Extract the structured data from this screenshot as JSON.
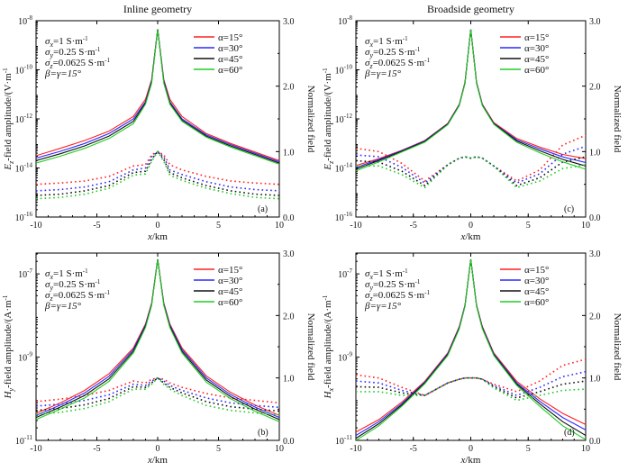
{
  "figure": {
    "col_titles": [
      "Inline geometry",
      "Broadside geometry"
    ],
    "right_axis_label": "Normalized field",
    "series_colors": [
      "#ff2020",
      "#2a2aff",
      "#111111",
      "#22cc22"
    ]
  },
  "chart_data": [
    {
      "type": "line",
      "id": "a",
      "panel_label": "(a)",
      "title": "Inline geometry",
      "xlabel": "x/km",
      "ylabel": "Ez-field amplitude/(V·m⁻¹)",
      "ylabel_parts": [
        "E",
        "z",
        "-field amplitude/(V·m",
        "-1",
        ")"
      ],
      "xlim": [
        -10,
        10
      ],
      "x_ticks": [
        "-10",
        "-5",
        "0",
        "5",
        "10"
      ],
      "ylim_log10": [
        -16,
        -8
      ],
      "y_ticks": [
        [
          "10",
          "-8"
        ],
        [
          "10",
          "-10"
        ],
        [
          "10",
          "-12"
        ],
        [
          "10",
          "-14"
        ],
        [
          "10",
          "-16"
        ]
      ],
      "y2label": "Normalized field",
      "y2lim": [
        0,
        3
      ],
      "y2_ticks": [
        "3.0",
        "2.0",
        "1.0",
        "0.0"
      ],
      "annotations": [
        [
          "σ",
          "x",
          "=1 S·m",
          "-1"
        ],
        [
          "σ",
          "y",
          "=0.25 S·m",
          "-1"
        ],
        [
          "σ",
          "z",
          "=0.0625 S·m",
          "-1"
        ],
        [
          "β=γ=15°",
          "",
          "",
          ""
        ]
      ],
      "legend": [
        "α=15°",
        "α=30°",
        "α=45°",
        "α=60°"
      ],
      "x": [
        -10,
        -8,
        -6,
        -4,
        -2,
        -1,
        -0.5,
        0,
        0.5,
        1,
        2,
        4,
        6,
        8,
        10
      ],
      "series": [
        {
          "name": "α=15°",
          "amp_log10": [
            -13.5,
            -13.2,
            -12.88,
            -12.5,
            -11.9,
            -11.2,
            -10.4,
            -8.35,
            -10.4,
            -11.2,
            -11.9,
            -12.6,
            -13.0,
            -13.35,
            -13.7
          ],
          "normalized": [
            0.5,
            0.52,
            0.55,
            0.62,
            0.78,
            0.8,
            0.95,
            1.0,
            0.95,
            0.8,
            0.72,
            0.62,
            0.55,
            0.52,
            0.5
          ]
        },
        {
          "name": "α=30°",
          "amp_log10": [
            -13.6,
            -13.32,
            -13.0,
            -12.6,
            -12.0,
            -11.3,
            -10.45,
            -8.35,
            -10.45,
            -11.3,
            -12.0,
            -12.65,
            -13.05,
            -13.4,
            -13.75
          ],
          "normalized": [
            0.4,
            0.42,
            0.46,
            0.54,
            0.72,
            0.75,
            0.92,
            1.0,
            0.92,
            0.72,
            0.65,
            0.54,
            0.46,
            0.42,
            0.4
          ]
        },
        {
          "name": "α=45°",
          "amp_log10": [
            -13.7,
            -13.42,
            -13.1,
            -12.7,
            -12.1,
            -11.35,
            -10.5,
            -8.35,
            -10.5,
            -11.35,
            -12.05,
            -12.7,
            -13.1,
            -13.45,
            -13.8
          ],
          "normalized": [
            0.33,
            0.35,
            0.4,
            0.48,
            0.68,
            0.7,
            0.88,
            1.0,
            0.88,
            0.68,
            0.6,
            0.48,
            0.4,
            0.35,
            0.33
          ]
        },
        {
          "name": "α=60°",
          "amp_log10": [
            -13.8,
            -13.52,
            -13.2,
            -12.8,
            -12.2,
            -11.4,
            -10.55,
            -8.35,
            -10.55,
            -11.4,
            -12.1,
            -12.75,
            -13.15,
            -13.5,
            -13.85
          ],
          "normalized": [
            0.28,
            0.3,
            0.35,
            0.44,
            0.64,
            0.66,
            0.85,
            1.0,
            0.85,
            0.64,
            0.56,
            0.44,
            0.36,
            0.3,
            0.28
          ]
        }
      ]
    },
    {
      "type": "line",
      "id": "c",
      "panel_label": "(c)",
      "title": "Broadside geometry",
      "xlabel": "x/km",
      "ylabel": "Ez-field amplitude/(V·m⁻¹)",
      "ylabel_parts": [
        "E",
        "z",
        "-field amplitude/(V·m",
        "-1",
        ")"
      ],
      "xlim": [
        -10,
        10
      ],
      "x_ticks": [
        "-10",
        "-5",
        "0",
        "5",
        "10"
      ],
      "ylim_log10": [
        -16,
        -8
      ],
      "y_ticks": [
        [
          "10",
          "-8"
        ],
        [
          "10",
          "-10"
        ],
        [
          "10",
          "-12"
        ],
        [
          "10",
          "-14"
        ],
        [
          "10",
          "-16"
        ]
      ],
      "y2label": "Normalized field",
      "y2lim": [
        0,
        3
      ],
      "y2_ticks": [
        "3.0",
        "2.0",
        "1.0",
        "0.0"
      ],
      "annotations": [
        [
          "σ",
          "x",
          "=1 S·m",
          "-1"
        ],
        [
          "σ",
          "y",
          "=0.25 S·m",
          "-1"
        ],
        [
          "σ",
          "z",
          "=0.0625 S·m",
          "-1"
        ],
        [
          "β=γ=15°",
          "",
          "",
          ""
        ]
      ],
      "legend": [
        "α=15°",
        "α=30°",
        "α=45°",
        "α=60°"
      ],
      "x": [
        -10,
        -8,
        -6,
        -4,
        -2,
        -1,
        -0.5,
        0,
        0.5,
        1,
        2,
        4,
        6,
        8,
        10
      ],
      "series": [
        {
          "name": "α=15°",
          "amp_log10": [
            -13.9,
            -13.62,
            -13.28,
            -12.88,
            -12.18,
            -11.4,
            -10.5,
            -8.35,
            -10.5,
            -11.4,
            -12.15,
            -12.8,
            -13.15,
            -13.45,
            -13.62
          ],
          "normalized": [
            1.05,
            1.0,
            0.82,
            0.55,
            0.8,
            0.9,
            0.92,
            0.9,
            0.92,
            0.9,
            0.78,
            0.55,
            0.72,
            1.1,
            1.25
          ]
        },
        {
          "name": "α=30°",
          "amp_log10": [
            -13.98,
            -13.66,
            -13.3,
            -12.9,
            -12.2,
            -11.42,
            -10.52,
            -8.35,
            -10.52,
            -11.42,
            -12.18,
            -12.85,
            -13.22,
            -13.55,
            -13.78
          ],
          "normalized": [
            0.95,
            0.92,
            0.76,
            0.52,
            0.8,
            0.9,
            0.92,
            0.9,
            0.92,
            0.9,
            0.78,
            0.52,
            0.66,
            0.96,
            1.08
          ]
        },
        {
          "name": "α=45°",
          "amp_log10": [
            -14.05,
            -13.7,
            -13.32,
            -12.92,
            -12.22,
            -11.44,
            -10.54,
            -8.35,
            -10.54,
            -11.44,
            -12.2,
            -12.9,
            -13.3,
            -13.65,
            -13.92
          ],
          "normalized": [
            0.86,
            0.84,
            0.7,
            0.48,
            0.8,
            0.9,
            0.92,
            0.9,
            0.92,
            0.9,
            0.78,
            0.48,
            0.6,
            0.84,
            0.92
          ]
        },
        {
          "name": "α=60°",
          "amp_log10": [
            -14.12,
            -13.75,
            -13.35,
            -12.95,
            -12.24,
            -11.46,
            -10.56,
            -8.35,
            -10.56,
            -11.46,
            -12.22,
            -12.95,
            -13.38,
            -13.75,
            -14.05
          ],
          "normalized": [
            0.78,
            0.78,
            0.65,
            0.45,
            0.8,
            0.9,
            0.92,
            0.9,
            0.92,
            0.9,
            0.78,
            0.45,
            0.55,
            0.74,
            0.8
          ]
        }
      ]
    },
    {
      "type": "line",
      "id": "b",
      "panel_label": "(b)",
      "title": "",
      "xlabel": "x/km",
      "ylabel": "Hy-field amplitude/(A·m⁻¹)",
      "ylabel_parts": [
        "H",
        "y",
        "-field amplitude/(A·m",
        "-1",
        ")"
      ],
      "xlim": [
        -10,
        10
      ],
      "x_ticks": [
        "-10",
        "-5",
        "0",
        "5",
        "10"
      ],
      "ylim_log10": [
        -11,
        -6.5
      ],
      "y_ticks": [
        [
          "10",
          "-7"
        ],
        [
          "10",
          "-9"
        ],
        [
          "10",
          "-11"
        ]
      ],
      "y2label": "Normalized field",
      "y2lim": [
        0,
        3
      ],
      "y2_ticks": [
        "3.0",
        "2.0",
        "1.0",
        "0.0"
      ],
      "annotations": [
        [
          "σ",
          "x",
          "=1 S·m",
          "-1"
        ],
        [
          "σ",
          "y",
          "=0.25 S·m",
          "-1"
        ],
        [
          "σ",
          "z",
          "=0.0625 S·m",
          "-1"
        ],
        [
          "β=γ=15°",
          "",
          "",
          ""
        ]
      ],
      "legend": [
        "α=15°",
        "α=30°",
        "α=45°",
        "α=60°"
      ],
      "x": [
        -10,
        -8,
        -6,
        -4,
        -2,
        -1,
        -0.5,
        0,
        0.5,
        1,
        2,
        4,
        6,
        8,
        10
      ],
      "series": [
        {
          "name": "α=15°",
          "amp_log10": [
            -10.35,
            -10.1,
            -9.8,
            -9.4,
            -8.78,
            -8.2,
            -7.7,
            -6.65,
            -7.7,
            -8.2,
            -8.78,
            -9.45,
            -9.85,
            -10.15,
            -10.4
          ],
          "normalized": [
            0.62,
            0.66,
            0.72,
            0.8,
            0.95,
            0.92,
            0.98,
            1.0,
            0.98,
            0.92,
            0.85,
            0.75,
            0.68,
            0.64,
            0.6
          ]
        },
        {
          "name": "α=30°",
          "amp_log10": [
            -10.4,
            -10.15,
            -9.86,
            -9.46,
            -8.82,
            -8.23,
            -7.72,
            -6.65,
            -7.72,
            -8.23,
            -8.82,
            -9.5,
            -9.9,
            -10.2,
            -10.45
          ],
          "normalized": [
            0.55,
            0.58,
            0.64,
            0.73,
            0.9,
            0.88,
            0.95,
            1.0,
            0.95,
            0.88,
            0.8,
            0.68,
            0.6,
            0.56,
            0.53
          ]
        },
        {
          "name": "α=45°",
          "amp_log10": [
            -10.45,
            -10.2,
            -9.92,
            -9.52,
            -8.86,
            -8.26,
            -7.74,
            -6.65,
            -7.74,
            -8.26,
            -8.86,
            -9.55,
            -9.95,
            -10.25,
            -10.5
          ],
          "normalized": [
            0.48,
            0.51,
            0.57,
            0.67,
            0.86,
            0.85,
            0.92,
            1.0,
            0.92,
            0.85,
            0.76,
            0.62,
            0.54,
            0.5,
            0.47
          ]
        },
        {
          "name": "α=60°",
          "amp_log10": [
            -10.5,
            -10.25,
            -9.98,
            -9.58,
            -8.9,
            -8.29,
            -7.76,
            -6.65,
            -7.76,
            -8.29,
            -8.9,
            -9.6,
            -10.0,
            -10.3,
            -10.55
          ],
          "normalized": [
            0.42,
            0.45,
            0.51,
            0.62,
            0.82,
            0.82,
            0.9,
            1.0,
            0.9,
            0.82,
            0.72,
            0.56,
            0.48,
            0.44,
            0.41
          ]
        }
      ]
    },
    {
      "type": "line",
      "id": "d",
      "panel_label": "(d)",
      "title": "",
      "xlabel": "x/km",
      "ylabel": "Hx-field amplitude/(A·m⁻¹)",
      "ylabel_parts": [
        "H",
        "x",
        "-field amplitude/(A·m",
        "-1",
        ")"
      ],
      "xlim": [
        -10,
        10
      ],
      "x_ticks": [
        "-10",
        "-5",
        "0",
        "5",
        "10"
      ],
      "ylim_log10": [
        -11,
        -6.5
      ],
      "y_ticks": [
        [
          "10",
          "-7"
        ],
        [
          "10",
          "-9"
        ],
        [
          "10",
          "-11"
        ]
      ],
      "y2label": "Normalized field",
      "y2lim": [
        0,
        3
      ],
      "y2_ticks": [
        "3.0",
        "2.0",
        "1.0",
        "0.0"
      ],
      "annotations": [
        [
          "σ",
          "x",
          "=1 S·m",
          "-1"
        ],
        [
          "σ",
          "y",
          "=0.25 S·m",
          "-1"
        ],
        [
          "σ",
          "z",
          "=0.0625 S·m",
          "-1"
        ],
        [
          "β=γ=15°",
          "",
          "",
          ""
        ]
      ],
      "legend": [
        "α=15°",
        "α=30°",
        "α=45°",
        "α=60°"
      ],
      "x": [
        -10,
        -8,
        -6,
        -4,
        -2,
        -1,
        -0.5,
        0,
        0.5,
        1,
        2,
        4,
        6,
        8,
        10
      ],
      "series": [
        {
          "name": "α=15°",
          "amp_log10": [
            -10.8,
            -10.5,
            -10.08,
            -9.58,
            -8.9,
            -8.26,
            -7.75,
            -6.65,
            -7.75,
            -8.26,
            -8.9,
            -9.58,
            -10.0,
            -10.35,
            -10.62
          ],
          "normalized": [
            1.05,
            1.0,
            0.85,
            0.72,
            0.92,
            0.98,
            1.0,
            1.0,
            1.0,
            0.98,
            0.9,
            0.78,
            0.95,
            1.2,
            1.3
          ]
        },
        {
          "name": "α=30°",
          "amp_log10": [
            -10.88,
            -10.55,
            -10.12,
            -9.6,
            -8.92,
            -8.28,
            -7.76,
            -6.65,
            -7.76,
            -8.28,
            -8.92,
            -9.62,
            -10.06,
            -10.45,
            -10.75
          ],
          "normalized": [
            0.95,
            0.92,
            0.8,
            0.72,
            0.92,
            0.98,
            1.0,
            1.0,
            1.0,
            0.98,
            0.88,
            0.72,
            0.85,
            1.02,
            1.1
          ]
        },
        {
          "name": "α=45°",
          "amp_log10": [
            -10.95,
            -10.6,
            -10.15,
            -9.62,
            -8.94,
            -8.3,
            -7.77,
            -6.65,
            -7.77,
            -8.3,
            -8.94,
            -9.65,
            -10.12,
            -10.55,
            -10.88
          ],
          "normalized": [
            0.86,
            0.85,
            0.76,
            0.72,
            0.92,
            0.98,
            1.0,
            1.0,
            1.0,
            0.98,
            0.86,
            0.68,
            0.78,
            0.9,
            0.95
          ]
        },
        {
          "name": "α=60°",
          "amp_log10": [
            -11.0,
            -10.65,
            -10.18,
            -9.64,
            -8.96,
            -8.32,
            -7.78,
            -6.65,
            -7.78,
            -8.32,
            -8.96,
            -9.68,
            -10.18,
            -10.65,
            -10.98
          ],
          "normalized": [
            0.78,
            0.78,
            0.72,
            0.72,
            0.92,
            0.98,
            1.0,
            1.0,
            1.0,
            0.98,
            0.84,
            0.64,
            0.72,
            0.8,
            0.82
          ]
        }
      ]
    }
  ]
}
